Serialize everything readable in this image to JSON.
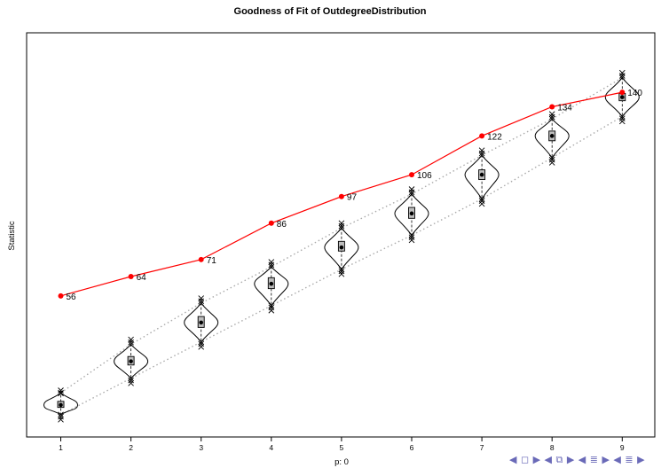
{
  "chart_data": {
    "type": "line",
    "title": "Goodness of Fit of OutdegreeDistribution",
    "xlabel": "p: 0",
    "ylabel": "Statistic",
    "x": [
      1,
      2,
      3,
      4,
      5,
      6,
      7,
      8,
      9
    ],
    "xticklabels": [
      "1",
      "2",
      "3",
      "4",
      "5",
      "6",
      "7",
      "8",
      "9"
    ],
    "observed": {
      "values": [
        56,
        64,
        71,
        86,
        97,
        106,
        122,
        134,
        140
      ],
      "color": "#ff0000"
    },
    "simulated": {
      "medians": [
        11,
        29,
        45,
        61,
        76,
        90,
        106,
        122,
        138
      ],
      "q1": [
        10,
        27.5,
        43,
        59,
        74.5,
        88,
        104,
        120,
        136.5
      ],
      "q3": [
        12.5,
        31,
        47.5,
        63.5,
        78.5,
        92.5,
        108,
        124,
        139.5
      ],
      "lower_band": [
        7,
        22,
        37,
        52,
        67,
        81,
        96,
        113,
        130
      ],
      "upper_band": [
        16,
        36,
        53,
        68,
        84,
        98,
        114,
        129,
        146
      ],
      "whisker_low": [
        5,
        20,
        35,
        50,
        65,
        79,
        94,
        111,
        128
      ],
      "whisker_high": [
        17,
        38,
        55,
        70,
        86,
        100,
        116,
        131,
        148
      ]
    },
    "ylim": [
      0,
      155
    ],
    "grid": false,
    "legend": "none"
  },
  "nav": {
    "symbols": "◀ ◻ ▶ ◀ ⧉ ▶ ◀ ≣ ▶ ◀ ≣ ▶"
  }
}
